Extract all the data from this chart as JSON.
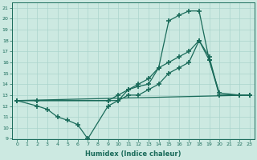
{
  "xlabel": "Humidex (Indice chaleur)",
  "xlim": [
    -0.5,
    23.5
  ],
  "ylim": [
    9,
    21.5
  ],
  "yticks": [
    9,
    10,
    11,
    12,
    13,
    14,
    15,
    16,
    17,
    18,
    19,
    20,
    21
  ],
  "xticks": [
    0,
    1,
    2,
    3,
    4,
    5,
    6,
    7,
    8,
    9,
    10,
    11,
    12,
    13,
    14,
    15,
    16,
    17,
    18,
    19,
    20,
    21,
    22,
    23
  ],
  "bg_color": "#cce9e1",
  "line_color": "#1a6b5a",
  "grid_color": "#aad4cc",
  "lines": [
    {
      "x": [
        0,
        2,
        3,
        4,
        5,
        6,
        7,
        9,
        10,
        11,
        12,
        13,
        14,
        15,
        16,
        17,
        18,
        19,
        20,
        22,
        23
      ],
      "y": [
        12.5,
        12.0,
        11.7,
        11.0,
        10.7,
        10.3,
        9.0,
        12.0,
        12.5,
        13.5,
        13.8,
        14.0,
        15.5,
        19.8,
        20.3,
        20.7,
        20.7,
        16.2,
        13.2,
        13.0,
        13.0
      ]
    },
    {
      "x": [
        0,
        2,
        9,
        10,
        11,
        12,
        13,
        14,
        15,
        16,
        17,
        18,
        19,
        20,
        22,
        23
      ],
      "y": [
        12.5,
        12.5,
        12.5,
        13.0,
        13.5,
        14.0,
        14.5,
        15.5,
        16.0,
        16.5,
        17.0,
        18.0,
        16.5,
        13.0,
        13.0,
        13.0
      ]
    },
    {
      "x": [
        0,
        2,
        9,
        10,
        11,
        12,
        13,
        14,
        15,
        16,
        17,
        18,
        19,
        20,
        22,
        23
      ],
      "y": [
        12.5,
        12.5,
        12.5,
        12.5,
        13.0,
        13.0,
        13.5,
        14.0,
        15.0,
        15.5,
        16.0,
        18.0,
        16.2,
        13.0,
        13.0,
        13.0
      ]
    },
    {
      "x": [
        0,
        23
      ],
      "y": [
        12.5,
        13.0
      ]
    }
  ]
}
